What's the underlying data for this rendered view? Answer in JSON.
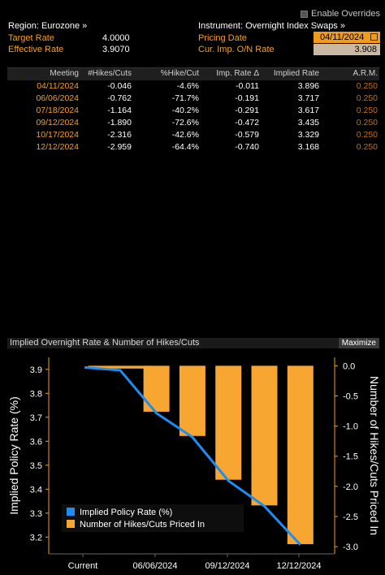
{
  "overrides": {
    "label": "Enable Overrides"
  },
  "header": {
    "region": "Region: Eurozone »",
    "instrument": "Instrument: Overnight Index Swaps »",
    "target_rate_label": "Target Rate",
    "target_rate": "4.0000",
    "effective_rate_label": "Effective Rate",
    "effective_rate": "3.9070",
    "pricing_date_label": "Pricing Date",
    "pricing_date": "04/11/2024",
    "cur_imp_label": "Cur. Imp. O/N Rate",
    "cur_imp": "3.908"
  },
  "table": {
    "columns": [
      "Meeting",
      "#Hikes/Cuts",
      "%Hike/Cut",
      "Imp. Rate Δ",
      "Implied Rate",
      "A.R.M."
    ],
    "rows": [
      [
        "04/11/2024",
        "-0.046",
        "-4.6%",
        "-0.011",
        "3.896",
        "0.250"
      ],
      [
        "06/06/2024",
        "-0.762",
        "-71.7%",
        "-0.191",
        "3.717",
        "0.250"
      ],
      [
        "07/18/2024",
        "-1.164",
        "-40.2%",
        "-0.291",
        "3.617",
        "0.250"
      ],
      [
        "09/12/2024",
        "-1.890",
        "-72.6%",
        "-0.472",
        "3.435",
        "0.250"
      ],
      [
        "10/17/2024",
        "-2.316",
        "-42.6%",
        "-0.579",
        "3.329",
        "0.250"
      ],
      [
        "12/12/2024",
        "-2.959",
        "-64.4%",
        "-0.740",
        "3.168",
        "0.250"
      ]
    ]
  },
  "chart_panel": {
    "title": "Implied Overnight Rate & Number of Hikes/Cuts",
    "maximize": "Maximize"
  },
  "chart_data": {
    "type": "bar",
    "categories": [
      "Current",
      "04/11/2024",
      "06/06/2024",
      "07/18/2024",
      "09/12/2024",
      "10/17/2024",
      "12/12/2024"
    ],
    "x_tick_labels": [
      "Current",
      "06/06/2024",
      "09/12/2024",
      "12/12/2024"
    ],
    "series": [
      {
        "name": "Implied Policy Rate (%)",
        "type": "line",
        "axis": "left",
        "color": "#1e8cf0",
        "values": [
          3.908,
          3.896,
          3.717,
          3.617,
          3.435,
          3.329,
          3.168
        ]
      },
      {
        "name": "Number of Hikes/Cuts Priced In",
        "type": "bar",
        "axis": "right",
        "color": "#f7a631",
        "values": [
          null,
          -0.046,
          -0.762,
          -1.164,
          -1.89,
          -2.316,
          -2.959
        ]
      }
    ],
    "ylabel": "Implied Policy Rate (%)",
    "y2label": "Number of Hikes/Cuts Priced In",
    "ylim": [
      3.13,
      3.95
    ],
    "y2lim": [
      -3.12,
      0.14
    ],
    "yticks": [
      "3.9",
      "3.8",
      "3.7",
      "3.6",
      "3.5",
      "3.4",
      "3.3",
      "3.2"
    ],
    "y2ticks": [
      "0.0",
      "-0.5",
      "-1.0",
      "-1.5",
      "-2.0",
      "-2.5",
      "-3.0"
    ],
    "legend_position": "bottom-left"
  }
}
